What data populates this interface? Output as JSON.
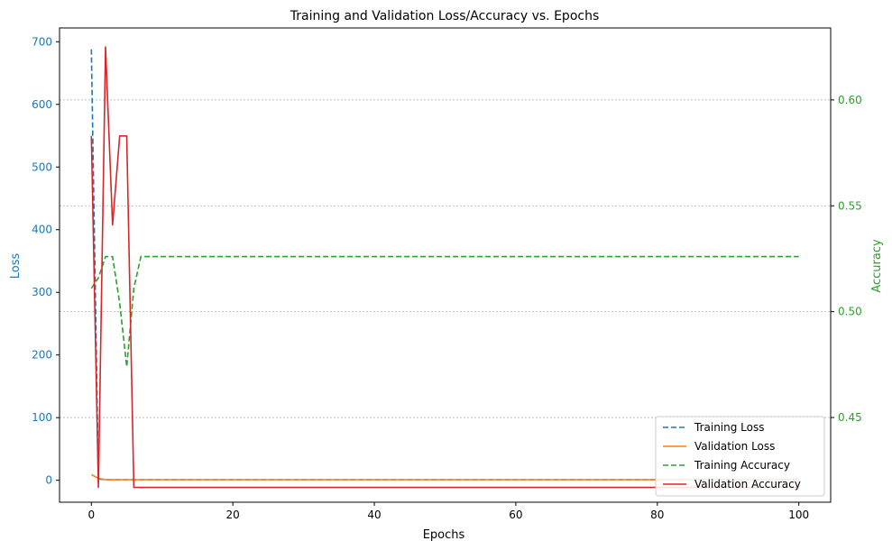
{
  "chart_data": {
    "type": "line",
    "title": "Training and Validation Loss/Accuracy vs. Epochs",
    "xlabel": "Epochs",
    "ylabel_left": "Loss",
    "ylabel_right": "Accuracy",
    "xlim": [
      -4.5,
      104.5
    ],
    "ylim_left": [
      -35,
      722
    ],
    "ylim_right": [
      0.41,
      0.634
    ],
    "x_ticks": [
      0,
      20,
      40,
      60,
      80,
      100
    ],
    "y_ticks_left": [
      0,
      100,
      200,
      300,
      400,
      500,
      600,
      700
    ],
    "y_ticks_right": [
      0.45,
      0.5,
      0.55,
      0.6
    ],
    "y_tick_labels_right": [
      "0.45",
      "0.50",
      "0.55",
      "0.60"
    ],
    "grid": "horizontal dotted at right-axis ticks",
    "legend_position": "lower right",
    "colors": {
      "left_axis": "#1f77b4",
      "right_axis": "#2ca02c"
    },
    "series": [
      {
        "name": "Training Loss",
        "axis": "left",
        "color": "#1f77b4",
        "dash": "dashed",
        "points": [
          [
            0,
            688
          ],
          [
            1,
            2
          ],
          [
            2,
            1
          ],
          [
            3,
            1
          ],
          [
            4,
            1
          ],
          [
            5,
            1
          ],
          [
            6,
            1
          ],
          [
            7,
            1
          ],
          [
            100,
            1
          ]
        ]
      },
      {
        "name": "Validation Loss",
        "axis": "left",
        "color": "#ff7f0e",
        "dash": "solid",
        "points": [
          [
            0,
            9
          ],
          [
            1,
            3
          ],
          [
            2,
            1
          ],
          [
            3,
            1
          ],
          [
            4,
            1
          ],
          [
            5,
            1
          ],
          [
            6,
            1
          ],
          [
            7,
            1
          ],
          [
            100,
            1
          ]
        ]
      },
      {
        "name": "Training Accuracy",
        "axis": "right",
        "color": "#2ca02c",
        "dash": "dashed",
        "points": [
          [
            0,
            0.511
          ],
          [
            1,
            0.516
          ],
          [
            2,
            0.526
          ],
          [
            3,
            0.526
          ],
          [
            4,
            0.504
          ],
          [
            5,
            0.474
          ],
          [
            6,
            0.511
          ],
          [
            7,
            0.526
          ],
          [
            100,
            0.526
          ]
        ]
      },
      {
        "name": "Validation Accuracy",
        "axis": "right",
        "color": "#d62728",
        "dash": "solid",
        "points": [
          [
            0,
            0.583
          ],
          [
            1,
            0.417
          ],
          [
            2,
            0.625
          ],
          [
            3,
            0.541
          ],
          [
            4,
            0.583
          ],
          [
            5,
            0.583
          ],
          [
            6,
            0.417
          ],
          [
            100,
            0.417
          ]
        ]
      }
    ]
  }
}
